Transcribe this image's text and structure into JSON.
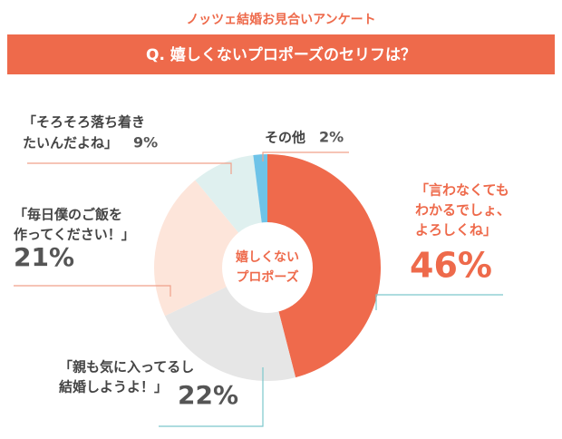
{
  "chart_data": {
    "type": "donut",
    "title": "ノッツェ結婚お見合いアンケート",
    "subtitle": "Q. 嬉しくないプロポーズのセリフは？",
    "center_label": [
      "嬉しくない",
      "プロポーズ"
    ],
    "categories": [
      [
        "「言わなくても",
        "わかるでしょ、",
        "よろしくね」"
      ],
      [
        "「親も気に入ってるし",
        "結婚しようよ！」"
      ],
      [
        "「毎日僕のご飯を",
        "作ってください！」"
      ],
      [
        "「そろそろ落ち着き",
        "たいんだよね」"
      ],
      [
        "その他"
      ]
    ],
    "values": [
      46,
      22,
      21,
      9,
      2
    ],
    "value_labels": [
      "46%",
      "22%",
      "21%",
      "9%",
      "2%"
    ],
    "colors": [
      "#ef6a4c",
      "#e6e6e6",
      "#fde5da",
      "#dff0ef",
      "#6ec3e8"
    ]
  }
}
